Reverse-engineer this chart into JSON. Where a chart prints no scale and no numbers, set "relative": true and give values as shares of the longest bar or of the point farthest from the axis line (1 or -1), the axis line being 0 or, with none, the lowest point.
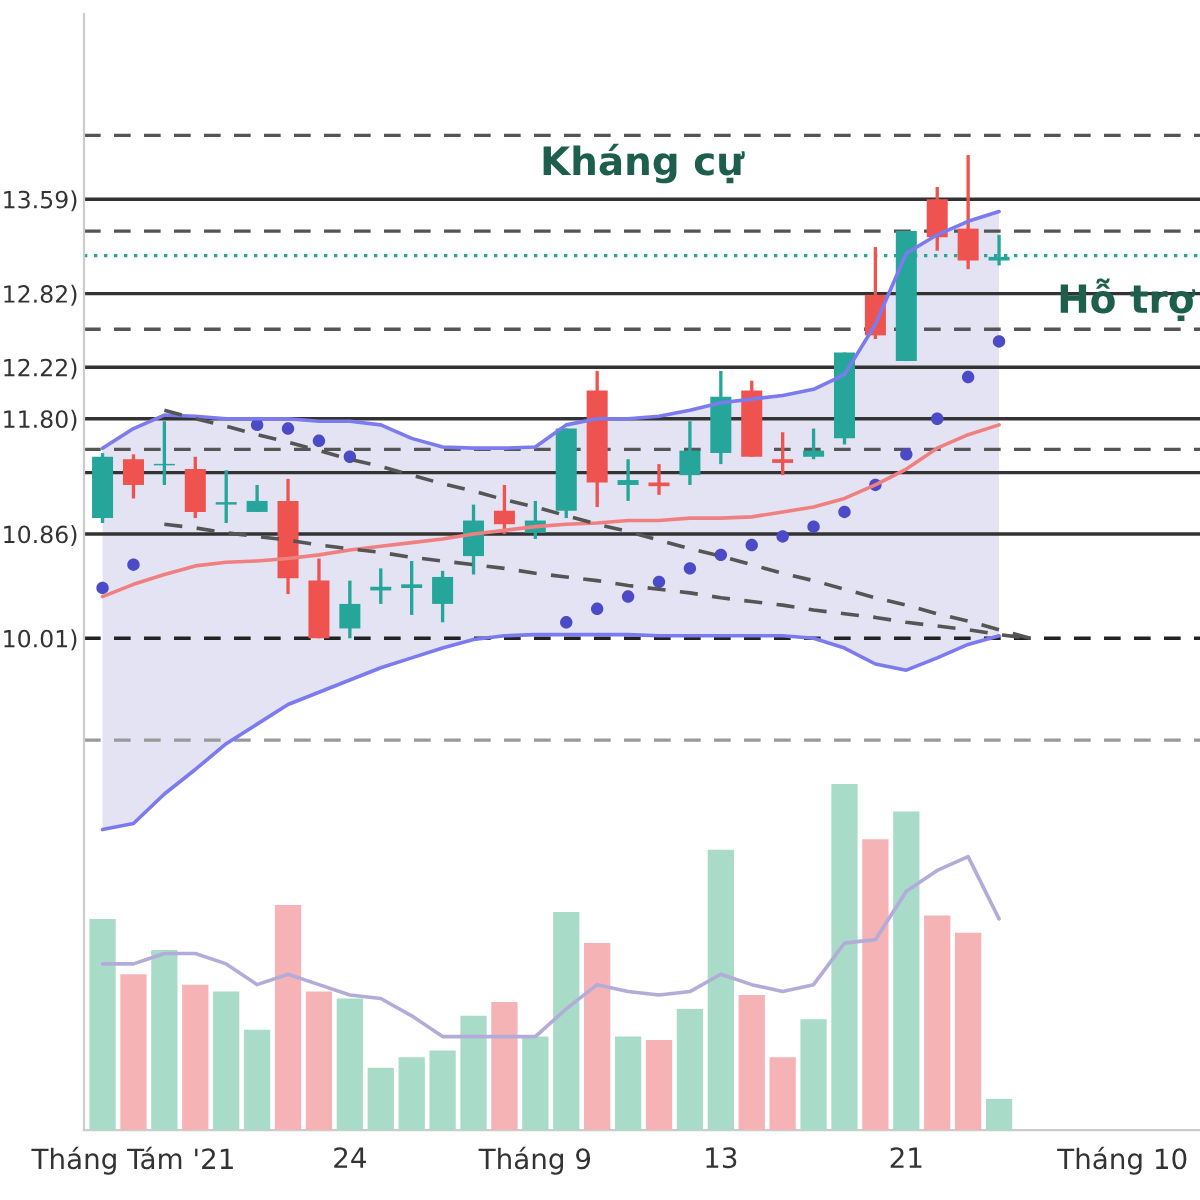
{
  "chart_data": [
    {
      "type": "candlestick",
      "categories": [
        null,
        "Tháng Tám '21",
        null,
        null,
        null,
        null,
        null,
        null,
        "24",
        null,
        null,
        null,
        null,
        null,
        "Tháng 9",
        null,
        null,
        null,
        null,
        null,
        "13",
        null,
        null,
        null,
        null,
        null,
        "21",
        null,
        null,
        null,
        null,
        null,
        null,
        "Tháng 10",
        null,
        null
      ],
      "ohlc": [
        [
          10.99,
          11.52,
          10.95,
          11.49
        ],
        [
          11.47,
          11.51,
          11.15,
          11.26
        ],
        [
          11.42,
          11.78,
          11.26,
          11.43
        ],
        [
          11.39,
          11.49,
          10.99,
          11.04
        ],
        [
          11.1,
          11.38,
          10.95,
          11.12
        ],
        [
          11.04,
          11.26,
          11.04,
          11.13
        ],
        [
          11.13,
          11.31,
          10.37,
          10.5
        ],
        [
          10.48,
          10.66,
          10.01,
          10.01
        ],
        [
          10.09,
          10.48,
          10.01,
          10.29
        ],
        [
          10.4,
          10.58,
          10.29,
          10.43
        ],
        [
          10.42,
          10.64,
          10.2,
          10.45
        ],
        [
          10.29,
          10.56,
          10.14,
          10.51
        ],
        [
          10.68,
          11.1,
          10.53,
          10.97
        ],
        [
          11.05,
          11.26,
          10.86,
          10.94
        ],
        [
          10.87,
          11.13,
          10.82,
          10.97
        ],
        [
          11.05,
          11.72,
          10.99,
          11.72
        ],
        [
          12.03,
          12.19,
          11.08,
          11.28
        ],
        [
          11.26,
          11.47,
          11.13,
          11.3
        ],
        [
          11.28,
          11.43,
          11.18,
          11.25
        ],
        [
          11.34,
          11.78,
          11.26,
          11.54
        ],
        [
          11.52,
          12.19,
          11.43,
          11.98
        ],
        [
          12.03,
          12.11,
          11.49,
          11.49
        ],
        [
          11.47,
          11.69,
          11.34,
          11.44
        ],
        [
          11.49,
          11.72,
          11.47,
          11.54
        ],
        [
          11.64,
          12.34,
          11.59,
          12.34
        ],
        [
          12.81,
          13.2,
          12.45,
          12.48
        ],
        [
          12.27,
          13.33,
          12.27,
          13.33
        ],
        [
          13.59,
          13.69,
          13.17,
          13.28
        ],
        [
          13.35,
          13.95,
          13.02,
          13.09
        ],
        [
          13.09,
          13.3,
          13.05,
          13.12
        ],
        null,
        null,
        null,
        null,
        null,
        null
      ],
      "colors": [
        "#26a69a",
        "#ef5350",
        "#26a69a",
        "#ef5350",
        "#26a69a",
        "#26a69a",
        "#ef5350",
        "#ef5350",
        "#26a69a",
        "#26a69a",
        "#26a69a",
        "#26a69a",
        "#26a69a",
        "#ef5350",
        "#26a69a",
        "#26a69a",
        "#ef5350",
        "#26a69a",
        "#ef5350",
        "#26a69a",
        "#26a69a",
        "#ef5350",
        "#ef5350",
        "#26a69a",
        "#26a69a",
        "#ef5350",
        "#26a69a",
        "#ef5350",
        "#ef5350",
        "#26a69a",
        null,
        null,
        null,
        null,
        null,
        null
      ],
      "series": [
        {
          "type": "line",
          "color": "#f08080",
          "values": [
            10.35,
            10.45,
            10.53,
            10.6,
            10.63,
            10.64,
            10.66,
            10.69,
            10.73,
            10.76,
            10.79,
            10.82,
            10.86,
            10.89,
            10.92,
            10.94,
            10.95,
            10.97,
            10.97,
            10.99,
            10.99,
            11.0,
            11.04,
            11.08,
            11.15,
            11.26,
            11.39,
            11.56,
            11.67,
            11.75,
            null,
            null,
            null,
            null,
            null,
            null
          ],
          "upper": [
            11.56,
            11.72,
            11.83,
            11.82,
            11.8,
            11.8,
            11.8,
            11.78,
            11.78,
            11.75,
            11.64,
            11.57,
            11.56,
            11.56,
            11.57,
            11.75,
            11.8,
            11.8,
            11.82,
            11.87,
            11.93,
            11.96,
            11.99,
            12.04,
            12.16,
            12.57,
            13.15,
            13.3,
            13.41,
            13.49,
            null,
            null,
            null,
            null,
            null,
            null
          ],
          "lower": [
            8.45,
            8.5,
            8.74,
            8.94,
            9.15,
            9.31,
            9.47,
            9.57,
            9.67,
            9.77,
            9.85,
            9.93,
            10.0,
            10.03,
            10.04,
            10.04,
            10.04,
            10.04,
            10.03,
            10.03,
            10.03,
            10.03,
            10.03,
            10.01,
            9.93,
            9.8,
            9.75,
            9.85,
            9.96,
            10.03,
            null,
            null,
            null,
            null,
            null,
            null
          ]
        },
        {
          "type": "line",
          "color": "#7b7bef",
          "values": [
            11.56,
            11.72,
            11.83,
            11.82,
            11.8,
            11.8,
            11.8,
            11.78,
            11.78,
            11.75,
            11.64,
            11.57,
            11.56,
            11.56,
            11.57,
            11.75,
            11.8,
            11.8,
            11.82,
            11.87,
            11.93,
            11.96,
            11.99,
            12.04,
            12.16,
            12.57,
            13.15,
            13.3,
            13.41,
            13.49,
            null,
            null,
            null,
            null,
            null,
            null
          ]
        },
        {
          "type": "line",
          "color": "#7b7bef",
          "values": [
            8.45,
            8.5,
            8.74,
            8.94,
            9.15,
            9.31,
            9.47,
            9.57,
            9.67,
            9.77,
            9.85,
            9.93,
            10.0,
            10.03,
            10.04,
            10.04,
            10.04,
            10.04,
            10.03,
            10.03,
            10.03,
            10.03,
            10.03,
            10.01,
            9.93,
            9.8,
            9.75,
            9.85,
            9.96,
            10.03,
            null,
            null,
            null,
            null,
            null,
            null
          ]
        },
        {
          "type": "scatter",
          "color": "#4b4bc8",
          "marker": "circle",
          "values": [
            10.42,
            10.61,
            null,
            null,
            null,
            11.75,
            11.72,
            11.62,
            11.49,
            null,
            null,
            null,
            null,
            null,
            null,
            10.14,
            10.25,
            10.35,
            10.47,
            10.58,
            10.69,
            10.77,
            10.84,
            10.92,
            11.04,
            11.26,
            11.51,
            11.8,
            12.14,
            12.43,
            null,
            null,
            null,
            null,
            null,
            null
          ]
        },
        {
          "type": "line",
          "color": "#555555",
          "line_style": "dashed",
          "values": [
            null,
            null,
            11.87,
            11.8,
            11.74,
            11.67,
            11.61,
            11.54,
            11.47,
            11.41,
            11.34,
            11.27,
            11.21,
            11.14,
            11.08,
            11.01,
            10.94,
            10.88,
            10.81,
            10.74,
            10.68,
            10.61,
            10.54,
            10.48,
            10.41,
            10.34,
            10.28,
            10.21,
            10.15,
            10.08,
            10.01,
            null,
            null,
            null,
            null,
            null
          ]
        },
        {
          "type": "line",
          "color": "#555555",
          "line_style": "dashed",
          "values": [
            null,
            null,
            10.94,
            10.91,
            10.87,
            10.84,
            10.81,
            10.77,
            10.74,
            10.71,
            10.67,
            10.64,
            10.61,
            10.58,
            10.54,
            10.51,
            10.48,
            10.44,
            10.41,
            10.38,
            10.34,
            10.31,
            10.28,
            10.24,
            10.21,
            10.18,
            10.14,
            10.11,
            10.08,
            10.04,
            10.01,
            null,
            null,
            null,
            null,
            null
          ]
        }
      ],
      "ref_lines": [
        {
          "axis": "y",
          "value": 14.11,
          "line_style": "dashed",
          "color": "#555555"
        },
        {
          "axis": "y",
          "value": 13.59,
          "line_style": "solid",
          "color": "#333333"
        },
        {
          "axis": "y",
          "value": 13.33,
          "line_style": "dashed",
          "color": "#555555"
        },
        {
          "axis": "y",
          "value": 13.13,
          "line_style": "dotted",
          "color": "#26a69a"
        },
        {
          "axis": "y",
          "value": 12.82,
          "line_style": "solid",
          "color": "#333333"
        },
        {
          "axis": "y",
          "value": 12.53,
          "line_style": "dashed",
          "color": "#555555"
        },
        {
          "axis": "y",
          "value": 12.22,
          "line_style": "solid",
          "color": "#333333"
        },
        {
          "axis": "y",
          "value": 11.8,
          "line_style": "solid",
          "color": "#333333"
        },
        {
          "axis": "y",
          "value": 11.55,
          "line_style": "dashed",
          "color": "#555555"
        },
        {
          "axis": "y",
          "value": 11.36,
          "line_style": "solid",
          "color": "#333333"
        },
        {
          "axis": "y",
          "value": 10.86,
          "line_style": "solid",
          "color": "#333333"
        },
        {
          "axis": "y",
          "value": 10.01,
          "line_style": "dashed",
          "color": "#222222"
        },
        {
          "axis": "y",
          "value": 9.18,
          "line_style": "dashed",
          "color": "#999999"
        }
      ],
      "annotations": [
        "Kháng cự",
        "Hỗ trợ"
      ],
      "yticks": [
        {
          "value": 13.59,
          "label": "13.59)"
        },
        {
          "value": 12.82,
          "label": "12.82)"
        },
        {
          "value": 12.22,
          "label": "12.22)"
        },
        {
          "value": 11.8,
          "label": "11.80)"
        },
        {
          "value": 10.86,
          "label": "10.86)"
        },
        {
          "value": 10.01,
          "label": "10.01)"
        }
      ],
      "ylim": [
        6.0,
        15.1
      ]
    },
    {
      "type": "bar",
      "relative": true,
      "categories": [
        null,
        null,
        null,
        null,
        null,
        null,
        null,
        null,
        null,
        null,
        null,
        null,
        null,
        null,
        null,
        null,
        null,
        null,
        null,
        null,
        null,
        null,
        null,
        null,
        null,
        null,
        null,
        null,
        null,
        null,
        null,
        null,
        null,
        null,
        null,
        null
      ],
      "series": [
        {
          "type": "bar",
          "colors": [
            "#a8dcc8",
            "#f5b3b5",
            "#a8dcc8",
            "#f5b3b5",
            "#a8dcc8",
            "#a8dcc8",
            "#f5b3b5",
            "#f5b3b5",
            "#a8dcc8",
            "#a8dcc8",
            "#a8dcc8",
            "#a8dcc8",
            "#a8dcc8",
            "#f5b3b5",
            "#a8dcc8",
            "#a8dcc8",
            "#f5b3b5",
            "#a8dcc8",
            "#f5b3b5",
            "#a8dcc8",
            "#a8dcc8",
            "#f5b3b5",
            "#f5b3b5",
            "#a8dcc8",
            "#a8dcc8",
            "#f5b3b5",
            "#a8dcc8",
            "#f5b3b5",
            "#f5b3b5",
            "#a8dcc8",
            null,
            null,
            null,
            null,
            null,
            null
          ],
          "values": [
            0.61,
            0.45,
            0.52,
            0.42,
            0.4,
            0.29,
            0.65,
            0.4,
            0.38,
            0.18,
            0.21,
            0.23,
            0.33,
            0.37,
            0.27,
            0.63,
            0.54,
            0.27,
            0.26,
            0.35,
            0.81,
            0.39,
            0.21,
            0.32,
            1,
            0.84,
            0.92,
            0.62,
            0.57,
            0.09,
            null,
            null,
            null,
            null,
            null,
            null
          ]
        },
        {
          "type": "line",
          "color": "#b4acd8",
          "values": [
            0.48,
            0.48,
            0.51,
            0.51,
            0.48,
            0.42,
            0.45,
            0.42,
            0.39,
            0.38,
            0.33,
            0.27,
            0.27,
            0.27,
            0.27,
            0.35,
            0.42,
            0.4,
            0.39,
            0.4,
            0.45,
            0.42,
            0.4,
            0.42,
            0.54,
            0.55,
            0.69,
            0.75,
            0.79,
            0.61,
            null,
            null,
            null,
            null,
            null,
            null
          ]
        }
      ]
    }
  ]
}
